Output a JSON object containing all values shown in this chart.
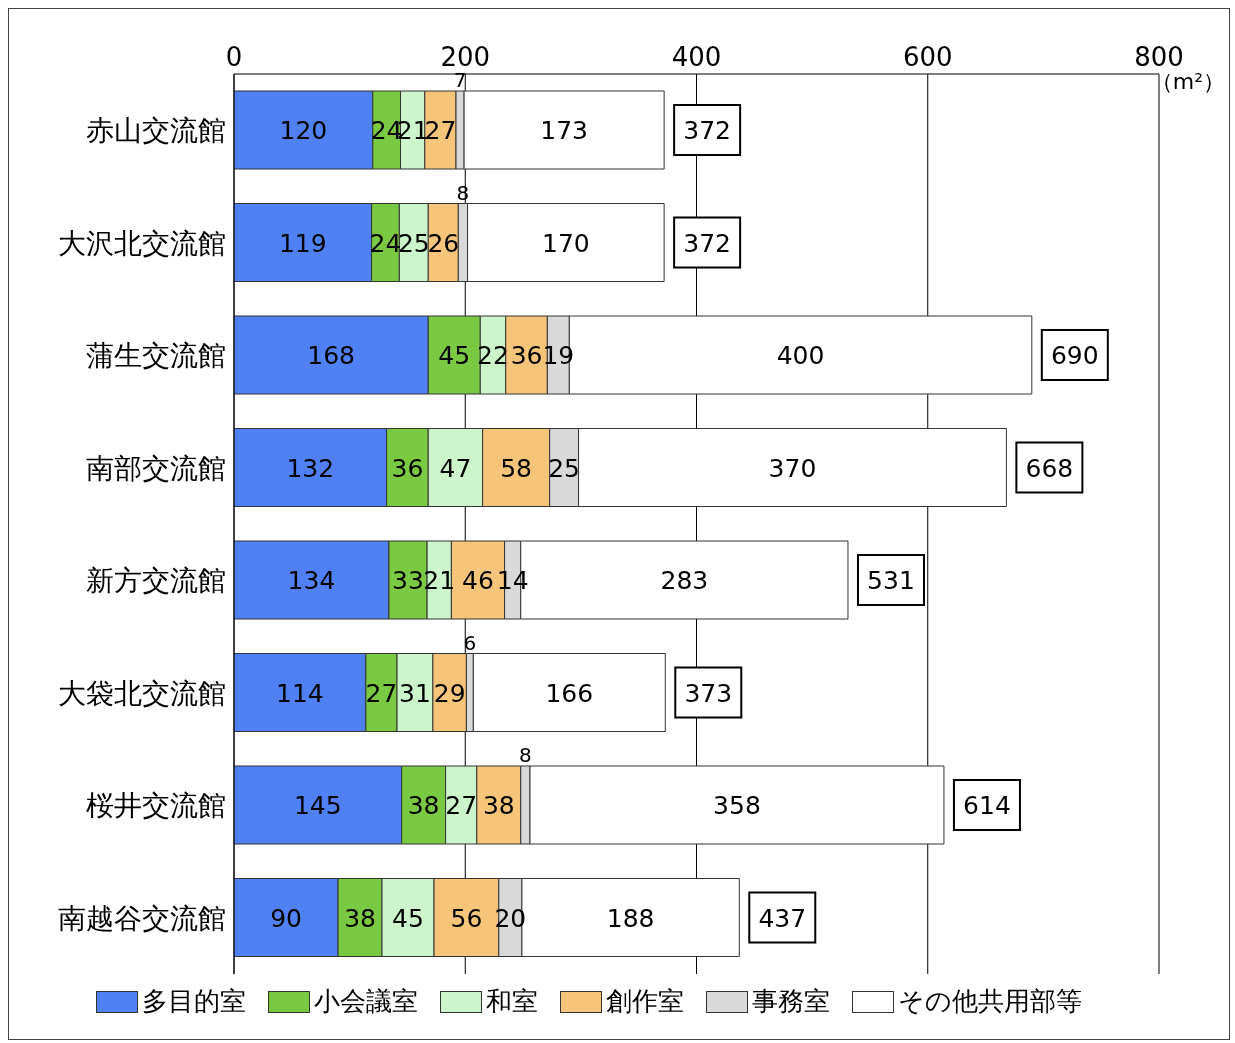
{
  "chart_data": {
    "type": "bar",
    "orientation": "horizontal",
    "stacked": true,
    "data_labels": true,
    "categories": [
      "赤山交流館",
      "大沢北交流館",
      "蒲生交流館",
      "南部交流館",
      "新方交流館",
      "大袋北交流館",
      "桜井交流館",
      "南越谷交流館"
    ],
    "series": [
      {
        "name": "多目的室",
        "color": "#4f81f5",
        "values": [
          120,
          119,
          168,
          132,
          134,
          114,
          145,
          90
        ]
      },
      {
        "name": "小会議室",
        "color": "#7ac943",
        "values": [
          24,
          24,
          45,
          36,
          33,
          27,
          38,
          38
        ]
      },
      {
        "name": "和室",
        "color": "#ccf5cc",
        "values": [
          21,
          25,
          22,
          47,
          21,
          31,
          27,
          45
        ]
      },
      {
        "name": "創作室",
        "color": "#f7c57a",
        "values": [
          27,
          26,
          36,
          58,
          46,
          29,
          38,
          56
        ]
      },
      {
        "name": "事務室",
        "color": "#d9d9d9",
        "values": [
          7,
          8,
          19,
          25,
          14,
          6,
          8,
          20
        ]
      },
      {
        "name": "その他共用部等",
        "color": "#ffffff",
        "values": [
          173,
          170,
          400,
          370,
          283,
          166,
          358,
          188
        ]
      }
    ],
    "totals": [
      "372",
      "372",
      "690",
      "668",
      "531",
      "373",
      "614",
      "437"
    ],
    "xlim": [
      0,
      800
    ],
    "xticks": [
      0,
      200,
      400,
      600,
      800
    ],
    "grid": "x",
    "legend": "bottom",
    "annotations": [
      "（m²）"
    ]
  }
}
